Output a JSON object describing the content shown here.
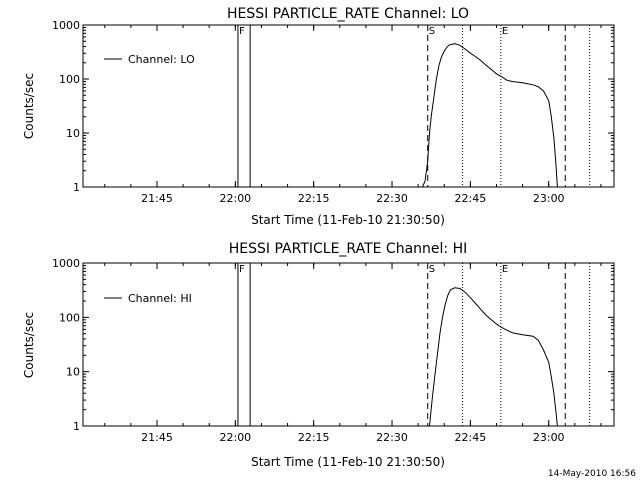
{
  "footer": {
    "timestamp": "14-May-2010 16:56"
  },
  "chart_data": [
    {
      "type": "line",
      "title": "HESSI PARTICLE_RATE Channel: LO",
      "xlabel": "Start Time (11-Feb-10 21:30:50)",
      "ylabel": "Counts/sec",
      "y_scale": "log",
      "ylim": [
        1,
        1000
      ],
      "xlim": [
        "21:30:50",
        "23:12:30"
      ],
      "x_ticks": [
        "21:45",
        "22:00",
        "22:15",
        "22:30",
        "22:45",
        "23:00"
      ],
      "y_ticks": [
        "1",
        "10",
        "100",
        "1000"
      ],
      "grid": false,
      "legend": "top-left",
      "series": [
        {
          "name": "Channel: LO",
          "x": [
            "22:35:50",
            "22:36:20",
            "22:36:50",
            "22:37:10",
            "22:37:30",
            "22:38:00",
            "22:38:30",
            "22:39:00",
            "22:39:30",
            "22:40:00",
            "22:40:30",
            "22:41:00",
            "22:42:00",
            "22:43:00",
            "22:44:00",
            "22:45:00",
            "22:46:00",
            "22:47:00",
            "22:48:00",
            "22:49:00",
            "22:50:00",
            "22:51:00",
            "22:52:00",
            "22:53:00",
            "22:55:00",
            "22:57:00",
            "22:58:00",
            "22:59:00",
            "23:00:00",
            "23:00:30",
            "23:01:00",
            "23:01:20",
            "23:01:40"
          ],
          "values": [
            1,
            1.3,
            3,
            10,
            20,
            45,
            100,
            180,
            260,
            330,
            390,
            430,
            450,
            420,
            360,
            300,
            260,
            220,
            180,
            150,
            125,
            110,
            95,
            90,
            85,
            78,
            72,
            60,
            40,
            20,
            8,
            3,
            1
          ]
        }
      ],
      "markers": [
        {
          "label": "F",
          "x": "22:00:30",
          "style": "solid"
        },
        {
          "label": "",
          "x": "22:02:50",
          "style": "solid"
        },
        {
          "label": "S",
          "x": "22:36:50",
          "style": "dashed"
        },
        {
          "label": "E",
          "x": "22:50:50",
          "style": "dotted"
        },
        {
          "label": "",
          "x": "22:43:30",
          "style": "dotted"
        },
        {
          "label": "",
          "x": "23:03:10",
          "style": "dashed"
        },
        {
          "label": "",
          "x": "23:07:50",
          "style": "dotted"
        }
      ]
    },
    {
      "type": "line",
      "title": "HESSI PARTICLE_RATE Channel: HI",
      "xlabel": "Start Time (11-Feb-10 21:30:50)",
      "ylabel": "Counts/sec",
      "y_scale": "log",
      "ylim": [
        1,
        1000
      ],
      "xlim": [
        "21:30:50",
        "23:12:30"
      ],
      "x_ticks": [
        "21:45",
        "22:00",
        "22:15",
        "22:30",
        "22:45",
        "23:00"
      ],
      "y_ticks": [
        "1",
        "10",
        "100",
        "1000"
      ],
      "grid": false,
      "legend": "top-left",
      "series": [
        {
          "name": "Channel: HI",
          "x": [
            "22:37:10",
            "22:37:40",
            "22:38:10",
            "22:38:40",
            "22:39:10",
            "22:39:40",
            "22:40:10",
            "22:40:40",
            "22:41:10",
            "22:42:00",
            "22:43:00",
            "22:44:00",
            "22:45:00",
            "22:46:00",
            "22:47:00",
            "22:48:00",
            "22:49:00",
            "22:50:00",
            "22:51:00",
            "22:52:00",
            "22:53:00",
            "22:55:00",
            "22:57:00",
            "22:58:00",
            "22:59:00",
            "23:00:00",
            "23:00:30",
            "23:01:00",
            "23:01:20",
            "23:01:40"
          ],
          "values": [
            1,
            3,
            8,
            20,
            50,
            100,
            170,
            250,
            320,
            350,
            340,
            290,
            230,
            180,
            140,
            110,
            90,
            75,
            65,
            58,
            52,
            48,
            45,
            38,
            25,
            15,
            8,
            4,
            2,
            1
          ]
        }
      ],
      "markers": [
        {
          "label": "F",
          "x": "22:00:30",
          "style": "solid"
        },
        {
          "label": "",
          "x": "22:02:50",
          "style": "solid"
        },
        {
          "label": "S",
          "x": "22:36:50",
          "style": "dashed"
        },
        {
          "label": "E",
          "x": "22:50:50",
          "style": "dotted"
        },
        {
          "label": "",
          "x": "22:43:30",
          "style": "dotted"
        },
        {
          "label": "",
          "x": "23:03:10",
          "style": "dashed"
        },
        {
          "label": "",
          "x": "23:07:50",
          "style": "dotted"
        }
      ]
    }
  ]
}
